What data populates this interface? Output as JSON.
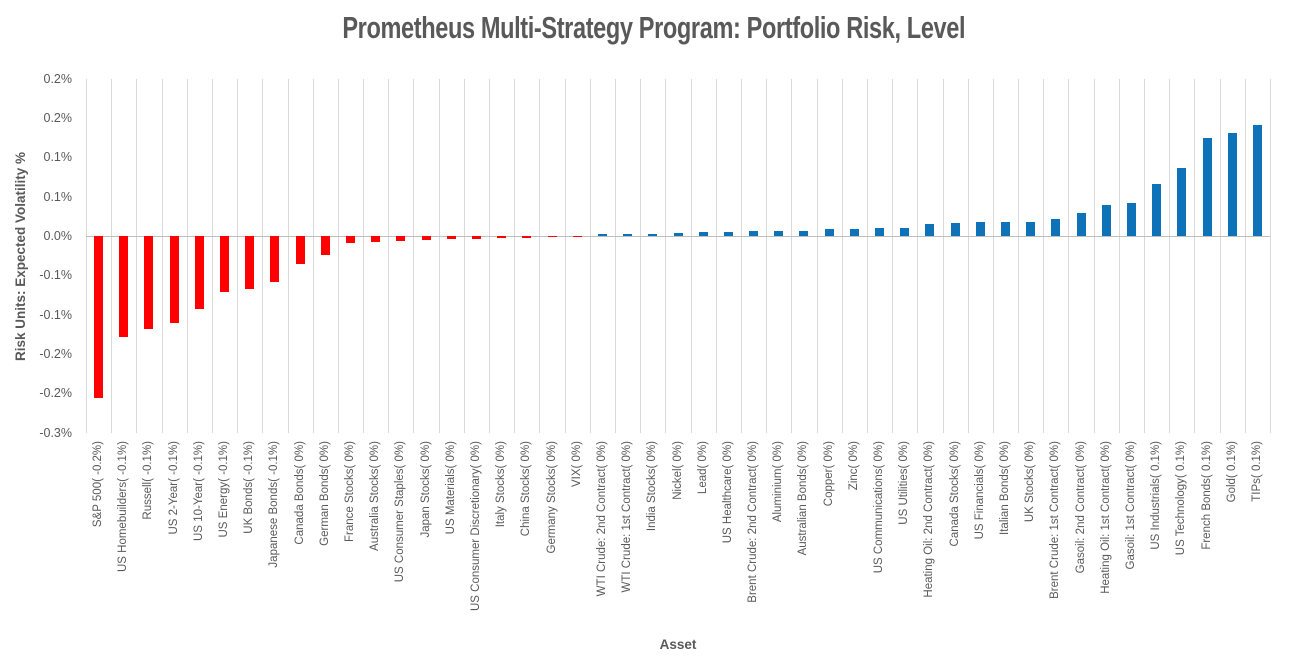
{
  "title": "Prometheus Multi-Strategy Program: Portfolio Risk, Level",
  "chart_data": {
    "type": "bar",
    "title": "Prometheus Multi-Strategy Program: Portfolio Risk, Level",
    "xlabel": "Asset",
    "ylabel": "Risk Units: Expected Volatility %",
    "ylim": [
      -0.25,
      0.2
    ],
    "y_major_unit": 0.05,
    "y_tick_labels": [
      "0.2%",
      "0.2%",
      "0.1%",
      "0.1%",
      "0.0%",
      "-0.1%",
      "-0.1%",
      "-0.2%",
      "-0.2%",
      "-0.3%"
    ],
    "grid": "vertical-category-gridlines-only",
    "legend": "none",
    "sort": "ascending-by-value",
    "colors": {
      "negative_bar": "#FF0000",
      "positive_bar": "#0E72B8",
      "gridline": "#D9D9D9",
      "axis_line": "#BFBFBF",
      "text": "#595959"
    },
    "categories": [
      "S&P 500( -0.2%)",
      "US Homebuilders( -0.1%)",
      "Russell( -0.1%)",
      "US 2-Year( -0.1%)",
      "US 10-Year( -0.1%)",
      "US Energy( -0.1%)",
      "UK Bonds( -0.1%)",
      "Japanese Bonds( -0.1%)",
      "Canada Bonds( 0%)",
      "German Bonds( 0%)",
      "France Stocks( 0%)",
      "Australia Stocks( 0%)",
      "US Consumer Staples( 0%)",
      "Japan Stocks( 0%)",
      "US Materials( 0%)",
      "US Consumer Discretionary( 0%)",
      "Italy Stocks( 0%)",
      "China Stocks( 0%)",
      "Germany Stocks( 0%)",
      "VIX( 0%)",
      "WTI Crude: 2nd Contract( 0%)",
      "WTI Crude: 1st Contract( 0%)",
      "India Stocks( 0%)",
      "Nickel( 0%)",
      "Lead( 0%)",
      "US Healthcare( 0%)",
      "Brent Crude: 2nd Contract( 0%)",
      "Aluminium( 0%)",
      "Australian Bonds( 0%)",
      "Copper( 0%)",
      "Zinc( 0%)",
      "US Communications( 0%)",
      "US Utilities( 0%)",
      "Heating Oil: 2nd Contract( 0%)",
      "Canada Stocks( 0%)",
      "US Financials( 0%)",
      "Italian Bonds( 0%)",
      "UK Stocks( 0%)",
      "Brent Crude: 1st Contract( 0%)",
      "Gasoil: 2nd Contract( 0%)",
      "Heating Oil: 1st Contract( 0%)",
      "Gasoil: 1st Contract( 0%)",
      "US Industrials( 0.1%)",
      "US Technology( 0.1%)",
      "French Bonds( 0.1%)",
      "Gold( 0.1%)",
      "TIPs( 0.1%)"
    ],
    "values": [
      -0.205,
      -0.128,
      -0.118,
      -0.11,
      -0.093,
      -0.071,
      -0.067,
      -0.058,
      -0.035,
      -0.024,
      -0.009,
      -0.007,
      -0.006,
      -0.005,
      -0.0035,
      -0.0028,
      -0.0021,
      -0.0015,
      -0.0006,
      -0.0002,
      0.0026,
      0.0029,
      0.0031,
      0.0048,
      0.0053,
      0.0058,
      0.0066,
      0.0068,
      0.007,
      0.0092,
      0.0094,
      0.0101,
      0.0103,
      0.0154,
      0.0167,
      0.018,
      0.0184,
      0.0188,
      0.0214,
      0.0295,
      0.0397,
      0.0423,
      0.0667,
      0.0868,
      0.1256,
      0.1312,
      0.141
    ]
  }
}
